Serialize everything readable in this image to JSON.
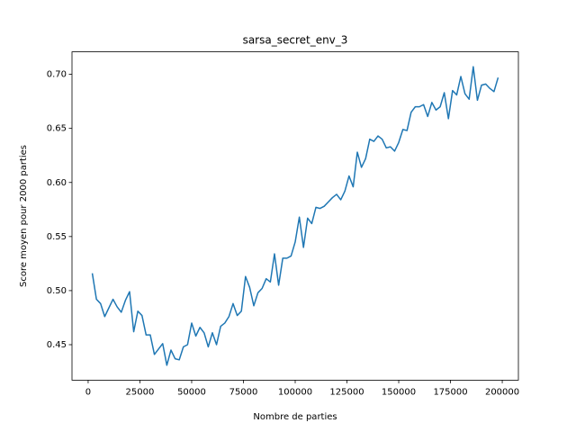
{
  "chart_data": {
    "type": "line",
    "title": "sarsa_secret_env_3",
    "xlabel": "Nombre de parties",
    "ylabel": "Score moyen pour 2000 parties",
    "x": [
      2000,
      4000,
      6000,
      8000,
      10000,
      12000,
      14000,
      16000,
      18000,
      20000,
      22000,
      24000,
      26000,
      28000,
      30000,
      32000,
      34000,
      36000,
      38000,
      40000,
      42000,
      44000,
      46000,
      48000,
      50000,
      52000,
      54000,
      56000,
      58000,
      60000,
      62000,
      64000,
      66000,
      68000,
      70000,
      72000,
      74000,
      76000,
      78000,
      80000,
      82000,
      84000,
      86000,
      88000,
      90000,
      92000,
      94000,
      96000,
      98000,
      100000,
      102000,
      104000,
      106000,
      108000,
      110000,
      112000,
      114000,
      116000,
      118000,
      120000,
      122000,
      124000,
      126000,
      128000,
      130000,
      132000,
      134000,
      136000,
      138000,
      140000,
      142000,
      144000,
      146000,
      148000,
      150000,
      152000,
      154000,
      156000,
      158000,
      160000,
      162000,
      164000,
      166000,
      168000,
      170000,
      172000,
      174000,
      176000,
      178000,
      180000,
      182000,
      184000,
      186000,
      188000,
      190000,
      192000,
      194000,
      196000,
      198000
    ],
    "series": [
      {
        "color": "#1f77b4",
        "values": [
          0.516,
          0.492,
          0.488,
          0.476,
          0.484,
          0.492,
          0.485,
          0.48,
          0.491,
          0.499,
          0.462,
          0.481,
          0.477,
          0.459,
          0.459,
          0.441,
          0.446,
          0.451,
          0.431,
          0.445,
          0.437,
          0.436,
          0.448,
          0.45,
          0.47,
          0.458,
          0.466,
          0.461,
          0.448,
          0.461,
          0.45,
          0.467,
          0.47,
          0.476,
          0.488,
          0.477,
          0.481,
          0.513,
          0.503,
          0.486,
          0.498,
          0.502,
          0.511,
          0.508,
          0.534,
          0.505,
          0.53,
          0.53,
          0.532,
          0.545,
          0.568,
          0.54,
          0.567,
          0.562,
          0.577,
          0.576,
          0.578,
          0.582,
          0.586,
          0.589,
          0.584,
          0.592,
          0.606,
          0.596,
          0.628,
          0.614,
          0.622,
          0.64,
          0.638,
          0.643,
          0.64,
          0.632,
          0.633,
          0.629,
          0.637,
          0.649,
          0.648,
          0.665,
          0.67,
          0.67,
          0.672,
          0.661,
          0.674,
          0.667,
          0.67,
          0.683,
          0.659,
          0.685,
          0.681,
          0.698,
          0.682,
          0.677,
          0.707,
          0.676,
          0.69,
          0.691,
          0.687,
          0.684,
          0.697
        ]
      }
    ],
    "xlim": [
      -7800,
      207800
    ],
    "ylim": [
      0.4172,
      0.7208
    ],
    "xticks": [
      0,
      25000,
      50000,
      75000,
      100000,
      125000,
      150000,
      175000,
      200000
    ],
    "yticks": [
      0.45,
      {
        "value": 0.5,
        "label": "0.50"
      },
      0.55,
      {
        "value": 0.6,
        "label": "0.60"
      },
      0.65,
      {
        "value": 0.7,
        "label": "0.70"
      }
    ]
  }
}
